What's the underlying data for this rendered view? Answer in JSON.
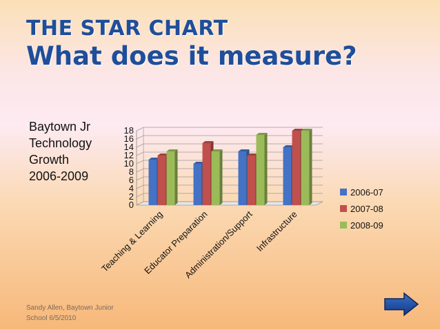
{
  "title": {
    "line1": "THE STAR CHART",
    "line2": "What does it measure?"
  },
  "side_label": [
    "Baytown Jr",
    "Technology",
    "Growth",
    "2006-2009"
  ],
  "footer": [
    "Sandy Allen, Baytown Junior",
    "School 6/5/2010"
  ],
  "nav": {
    "next_icon": "right-arrow-icon"
  },
  "chart_data": {
    "type": "bar",
    "categories": [
      "Teaching & Learning",
      "Educator Preparation",
      "Administration/Support",
      "Infrastructure"
    ],
    "series": [
      {
        "name": "2006-07",
        "values": [
          11,
          10,
          13,
          14
        ],
        "color": "#4472c4"
      },
      {
        "name": "2007-08",
        "values": [
          12,
          15,
          12,
          18
        ],
        "color": "#c0504d"
      },
      {
        "name": "2008-09",
        "values": [
          13,
          13,
          17,
          18
        ],
        "color": "#9bbb59"
      }
    ],
    "yticks": [
      0,
      2,
      4,
      6,
      8,
      10,
      12,
      14,
      16,
      18
    ],
    "ylim": [
      0,
      18
    ],
    "legend": "right",
    "grid": true
  }
}
